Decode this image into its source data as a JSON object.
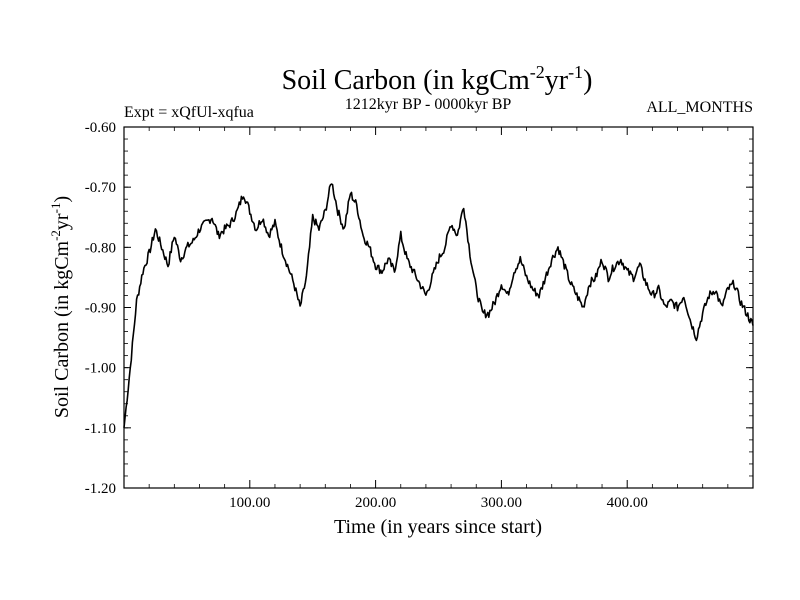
{
  "chart_data": {
    "type": "line",
    "title": "Soil Carbon (in kgCm",
    "title_sup1": "-2",
    "title_mid": "yr",
    "title_sup2": "-1",
    "title_end": ")",
    "subtitle_left": "Expt = xQfUl-xqfua",
    "subtitle_center": "1212kyr BP - 0000kyr BP",
    "subtitle_right": "ALL_MONTHS",
    "xlabel": "Time (in years since start)",
    "ylabel": "Soil Carbon (in kgCm",
    "ylabel_sup1": "-2",
    "ylabel_mid": "yr",
    "ylabel_sup2": "-1",
    "ylabel_end": ")",
    "xlim": [
      0,
      500
    ],
    "ylim": [
      -1.2,
      -0.6
    ],
    "x_ticks": [
      100,
      200,
      300,
      400
    ],
    "x_tick_labels": [
      "100.00",
      "200.00",
      "300.00",
      "400.00"
    ],
    "y_ticks": [
      -1.2,
      -1.1,
      -1.0,
      -0.9,
      -0.8,
      -0.7,
      -0.6
    ],
    "y_tick_labels": [
      "-1.20",
      "-1.10",
      "-1.00",
      "-0.90",
      "-0.80",
      "-0.70",
      "-0.60"
    ],
    "series": [
      {
        "name": "Soil Carbon",
        "x": [
          0,
          5,
          10,
          15,
          20,
          25,
          30,
          35,
          40,
          45,
          50,
          55,
          60,
          65,
          70,
          75,
          80,
          85,
          90,
          95,
          100,
          105,
          110,
          115,
          120,
          125,
          130,
          135,
          140,
          145,
          150,
          155,
          160,
          165,
          170,
          175,
          180,
          185,
          190,
          195,
          200,
          205,
          210,
          215,
          220,
          225,
          230,
          235,
          240,
          245,
          250,
          255,
          260,
          265,
          270,
          275,
          280,
          285,
          290,
          295,
          300,
          305,
          310,
          315,
          320,
          325,
          330,
          335,
          340,
          345,
          350,
          355,
          360,
          365,
          370,
          375,
          380,
          385,
          390,
          395,
          400,
          405,
          410,
          415,
          420,
          425,
          430,
          435,
          440,
          445,
          450,
          455,
          460,
          465,
          470,
          475,
          480,
          485,
          490,
          495,
          500
        ],
        "values": [
          -1.1,
          -1.0,
          -0.89,
          -0.84,
          -0.81,
          -0.77,
          -0.8,
          -0.83,
          -0.78,
          -0.82,
          -0.8,
          -0.79,
          -0.77,
          -0.76,
          -0.75,
          -0.78,
          -0.77,
          -0.76,
          -0.74,
          -0.71,
          -0.74,
          -0.77,
          -0.75,
          -0.78,
          -0.76,
          -0.8,
          -0.83,
          -0.86,
          -0.9,
          -0.85,
          -0.75,
          -0.77,
          -0.74,
          -0.69,
          -0.74,
          -0.77,
          -0.71,
          -0.73,
          -0.78,
          -0.8,
          -0.83,
          -0.84,
          -0.82,
          -0.84,
          -0.78,
          -0.82,
          -0.84,
          -0.86,
          -0.88,
          -0.85,
          -0.82,
          -0.8,
          -0.76,
          -0.78,
          -0.73,
          -0.81,
          -0.87,
          -0.91,
          -0.91,
          -0.89,
          -0.86,
          -0.88,
          -0.84,
          -0.82,
          -0.85,
          -0.87,
          -0.88,
          -0.85,
          -0.82,
          -0.8,
          -0.83,
          -0.86,
          -0.88,
          -0.9,
          -0.86,
          -0.85,
          -0.82,
          -0.85,
          -0.83,
          -0.82,
          -0.84,
          -0.85,
          -0.83,
          -0.86,
          -0.88,
          -0.87,
          -0.9,
          -0.89,
          -0.9,
          -0.88,
          -0.92,
          -0.95,
          -0.91,
          -0.88,
          -0.87,
          -0.9,
          -0.87,
          -0.86,
          -0.89,
          -0.91,
          -0.93
        ]
      }
    ]
  }
}
